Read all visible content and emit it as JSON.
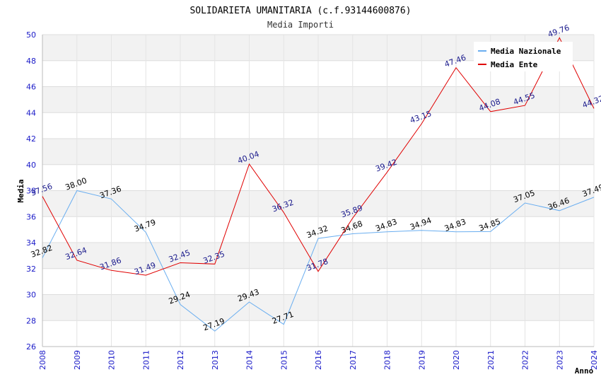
{
  "chart_data": {
    "type": "line",
    "title": "SOLIDARIETA UMANITARIA (c.f.93144600876)",
    "subtitle": "Media Importi",
    "xlabel": "Anno",
    "ylabel": "Media",
    "ylim": [
      26,
      50
    ],
    "yticks": [
      26,
      28,
      30,
      32,
      34,
      36,
      38,
      40,
      42,
      44,
      46,
      48,
      50
    ],
    "categories": [
      "2008",
      "2009",
      "2010",
      "2011",
      "2012",
      "2013",
      "2014",
      "2015",
      "2016",
      "2017",
      "2018",
      "2019",
      "2020",
      "2021",
      "2022",
      "2023",
      "2024"
    ],
    "legend_position": "top-right",
    "series": [
      {
        "name": "Media Nazionale",
        "color": "#6aaef0",
        "values": [
          32.82,
          38.0,
          37.36,
          34.79,
          29.24,
          27.19,
          29.43,
          27.71,
          34.32,
          34.68,
          34.83,
          34.94,
          34.83,
          34.85,
          37.05,
          36.46,
          37.49
        ],
        "labels": [
          "32.82",
          "38.00",
          "37.36",
          "34.79",
          "29.24",
          "27.19",
          "29.43",
          "27.71",
          "34.32",
          "34.68",
          "34.83",
          "34.94",
          "34.83",
          "34.85",
          "37.05",
          "36.46",
          "37.49"
        ]
      },
      {
        "name": "Media Ente",
        "color": "#e00000",
        "values": [
          37.56,
          32.64,
          31.86,
          31.49,
          32.45,
          32.35,
          40.04,
          36.32,
          31.78,
          35.89,
          39.42,
          43.15,
          47.46,
          44.08,
          44.55,
          49.76,
          44.32
        ],
        "labels": [
          "37.56",
          "32.64",
          "31.86",
          "31.49",
          "32.45",
          "32.35",
          "40.04",
          "36.32",
          "31.78",
          "35.89",
          "39.42",
          "43.15",
          "47.46",
          "44.08",
          "44.55",
          "49.76",
          "44.32"
        ]
      }
    ]
  }
}
